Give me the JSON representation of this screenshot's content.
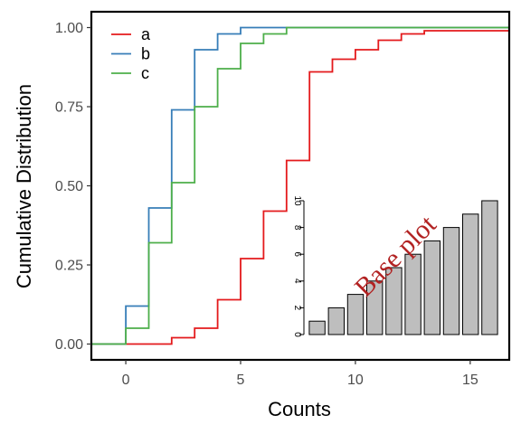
{
  "chart_data": {
    "type": "line",
    "subtype": "ecdf-step",
    "xlabel": "Counts",
    "ylabel": "Cumulative Distribution",
    "xlim": [
      -1.5,
      16.7
    ],
    "ylim": [
      -0.05,
      1.05
    ],
    "x_ticks": [
      0,
      5,
      10,
      15
    ],
    "x_tick_labels": [
      "0",
      "5",
      "10",
      "15"
    ],
    "y_ticks": [
      0,
      0.25,
      0.5,
      0.75,
      1
    ],
    "y_tick_labels": [
      "0.00",
      "0.25",
      "0.50",
      "0.75",
      "1.00"
    ],
    "grid": false,
    "legend": {
      "position": "top-left",
      "entries": [
        "a",
        "b",
        "c"
      ]
    },
    "series": [
      {
        "name": "a",
        "color": "#E41A1C",
        "points": [
          [
            -1.5,
            0
          ],
          [
            1,
            0
          ],
          [
            2,
            0.02
          ],
          [
            3,
            0.05
          ],
          [
            4,
            0.14
          ],
          [
            5,
            0.27
          ],
          [
            6,
            0.42
          ],
          [
            7,
            0.58
          ],
          [
            8,
            0.86
          ],
          [
            9,
            0.9
          ],
          [
            10,
            0.93
          ],
          [
            11,
            0.96
          ],
          [
            12,
            0.98
          ],
          [
            13,
            0.99
          ],
          [
            16.7,
            0.99
          ]
        ]
      },
      {
        "name": "b",
        "color": "#377EB8",
        "points": [
          [
            -1.5,
            0
          ],
          [
            0,
            0.12
          ],
          [
            1,
            0.43
          ],
          [
            2,
            0.74
          ],
          [
            3,
            0.93
          ],
          [
            4,
            0.98
          ],
          [
            5,
            1.0
          ],
          [
            16.7,
            1.0
          ]
        ]
      },
      {
        "name": "c",
        "color": "#4DAF4A",
        "points": [
          [
            -1.5,
            0
          ],
          [
            0,
            0.05
          ],
          [
            1,
            0.32
          ],
          [
            2,
            0.51
          ],
          [
            3,
            0.75
          ],
          [
            4,
            0.87
          ],
          [
            5,
            0.95
          ],
          [
            6,
            0.98
          ],
          [
            7,
            1.0
          ],
          [
            16.7,
            1.0
          ]
        ]
      }
    ],
    "inset": {
      "type": "bar",
      "values": [
        1,
        2,
        3,
        4,
        5,
        6,
        7,
        8,
        9,
        10
      ],
      "ylim": [
        0,
        10
      ],
      "y_ticks": [
        0,
        2,
        4,
        6,
        8,
        10
      ],
      "y_tick_labels": [
        "0",
        "2",
        "4",
        "6",
        "8",
        "10"
      ],
      "bar_color": "#BEBEBE",
      "overlay_text": "Base plot",
      "overlay_color": "#B22222"
    }
  }
}
